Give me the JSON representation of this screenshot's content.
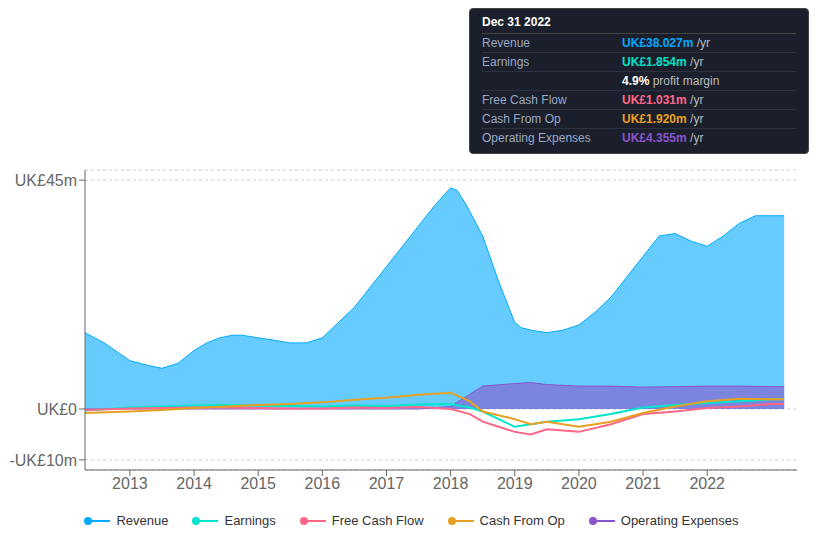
{
  "chart_data": {
    "type": "line",
    "grid": true,
    "legend": "bottom",
    "xlim": [
      2012.3,
      2023.4
    ],
    "xticks": [
      2013,
      2014,
      2015,
      2016,
      2017,
      2018,
      2019,
      2020,
      2021,
      2022
    ],
    "ylim": [
      -12,
      47
    ],
    "yticks": [
      {
        "value": -10,
        "label": "-UK£10m"
      },
      {
        "value": 0,
        "label": "UK£0"
      },
      {
        "value": 45,
        "label": "UK£45m"
      }
    ],
    "series": [
      {
        "name": "Revenue",
        "type": "area",
        "color": "#00aaff",
        "x": [
          2012.3,
          2012.6,
          2013.0,
          2013.3,
          2013.5,
          2013.75,
          2014.0,
          2014.2,
          2014.4,
          2014.6,
          2014.75,
          2015.0,
          2015.25,
          2015.5,
          2015.75,
          2016.0,
          2016.25,
          2016.5,
          2016.75,
          2017.0,
          2017.25,
          2017.5,
          2017.75,
          2018.0,
          2018.1,
          2018.25,
          2018.5,
          2018.75,
          2019.0,
          2019.1,
          2019.25,
          2019.5,
          2019.75,
          2020.0,
          2020.25,
          2020.5,
          2020.75,
          2021.0,
          2021.25,
          2021.5,
          2021.75,
          2022.0,
          2022.25,
          2022.5,
          2022.75,
          2023.0,
          2023.2
        ],
        "values": [
          15,
          13,
          9.5,
          8.5,
          8,
          9,
          11.5,
          13,
          14,
          14.5,
          14.5,
          14,
          13.5,
          13,
          13,
          14,
          17,
          20,
          24,
          28,
          32,
          36,
          40,
          43.5,
          43,
          40,
          34,
          25,
          17,
          16,
          15.5,
          15,
          15.5,
          16.5,
          19,
          22,
          26,
          30,
          34,
          34.5,
          33,
          32,
          34,
          36.5,
          38,
          38,
          38
        ]
      },
      {
        "name": "Earnings",
        "type": "line",
        "color": "#00e5cc",
        "x": [
          2012.3,
          2013.0,
          2013.5,
          2014.0,
          2014.5,
          2015.0,
          2015.5,
          2016.0,
          2016.5,
          2017.0,
          2017.5,
          2018.0,
          2018.3,
          2018.5,
          2019.0,
          2019.25,
          2019.5,
          2020.0,
          2020.5,
          2021.0,
          2021.5,
          2022.0,
          2022.5,
          2023.0,
          2023.2
        ],
        "values": [
          -0.3,
          0.3,
          0.5,
          0.7,
          0.8,
          0.7,
          0.6,
          0.5,
          0.7,
          0.6,
          0.9,
          1.0,
          0.3,
          -0.5,
          -3.5,
          -3.0,
          -2.5,
          -2.0,
          -1.0,
          0.3,
          0.8,
          1.2,
          1.5,
          1.9,
          1.9
        ]
      },
      {
        "name": "Free Cash Flow",
        "type": "line",
        "color": "#ff6688",
        "x": [
          2012.3,
          2013.0,
          2013.5,
          2014.0,
          2014.5,
          2015.0,
          2015.5,
          2016.0,
          2016.5,
          2017.0,
          2017.5,
          2018.0,
          2018.3,
          2018.5,
          2019.0,
          2019.25,
          2019.5,
          2020.0,
          2020.5,
          2021.0,
          2021.5,
          2022.0,
          2022.5,
          2023.0,
          2023.2
        ],
        "values": [
          -0.2,
          0.1,
          0.2,
          0.3,
          0.3,
          0.2,
          0.1,
          0.1,
          0.3,
          0.2,
          0.4,
          0.0,
          -1.0,
          -2.5,
          -4.5,
          -5.0,
          -4.0,
          -4.5,
          -3.0,
          -1.0,
          -0.5,
          0.2,
          0.5,
          1.0,
          1.0
        ]
      },
      {
        "name": "Cash From Op",
        "type": "line",
        "color": "#e8a020",
        "x": [
          2012.3,
          2013.0,
          2013.5,
          2014.0,
          2014.5,
          2015.0,
          2015.5,
          2016.0,
          2016.5,
          2017.0,
          2017.5,
          2018.0,
          2018.3,
          2018.5,
          2019.0,
          2019.25,
          2019.5,
          2020.0,
          2020.5,
          2021.0,
          2021.5,
          2022.0,
          2022.5,
          2023.0,
          2023.2
        ],
        "values": [
          -0.8,
          -0.5,
          -0.2,
          0.2,
          0.5,
          0.8,
          1.0,
          1.3,
          1.8,
          2.2,
          2.8,
          3.2,
          1.5,
          -0.5,
          -2.0,
          -3.0,
          -2.5,
          -3.5,
          -2.5,
          -0.8,
          0.5,
          1.5,
          2.0,
          1.9,
          1.9
        ]
      },
      {
        "name": "Operating Expenses",
        "type": "area",
        "color": "#8855cc",
        "x": [
          2012.3,
          2013.0,
          2013.5,
          2014.0,
          2014.5,
          2015.0,
          2015.5,
          2016.0,
          2016.5,
          2017.0,
          2017.5,
          2018.0,
          2018.25,
          2018.5,
          2019.0,
          2019.25,
          2019.5,
          2020.0,
          2020.5,
          2021.0,
          2021.5,
          2022.0,
          2022.5,
          2023.0,
          2023.2
        ],
        "values": [
          0.0,
          0.0,
          0.0,
          0.0,
          0.0,
          0.0,
          0.0,
          0.0,
          0.0,
          0.0,
          0.0,
          0.5,
          2.5,
          4.5,
          5.0,
          5.2,
          4.8,
          4.5,
          4.5,
          4.3,
          4.4,
          4.5,
          4.5,
          4.4,
          4.4
        ]
      }
    ],
    "annotations": [
      {
        "text": "Dec 31 2022"
      },
      {
        "label": "Revenue",
        "text": "UK£38.027m",
        "suffix": " /yr",
        "color": "#00aaff"
      },
      {
        "label": "Earnings",
        "text": "UK£1.854m",
        "suffix": " /yr",
        "color": "#00e5cc"
      },
      {
        "text": "4.9%",
        "suffix": " profit margin",
        "color": "#ffffff"
      },
      {
        "label": "Free Cash Flow",
        "text": "UK£1.031m",
        "suffix": " /yr",
        "color": "#ff6688"
      },
      {
        "label": "Cash From Op",
        "text": "UK£1.920m",
        "suffix": " /yr",
        "color": "#e8a020"
      },
      {
        "label": "Operating Expenses",
        "text": "UK£4.355m",
        "suffix": " /yr",
        "color": "#8855cc"
      }
    ]
  }
}
